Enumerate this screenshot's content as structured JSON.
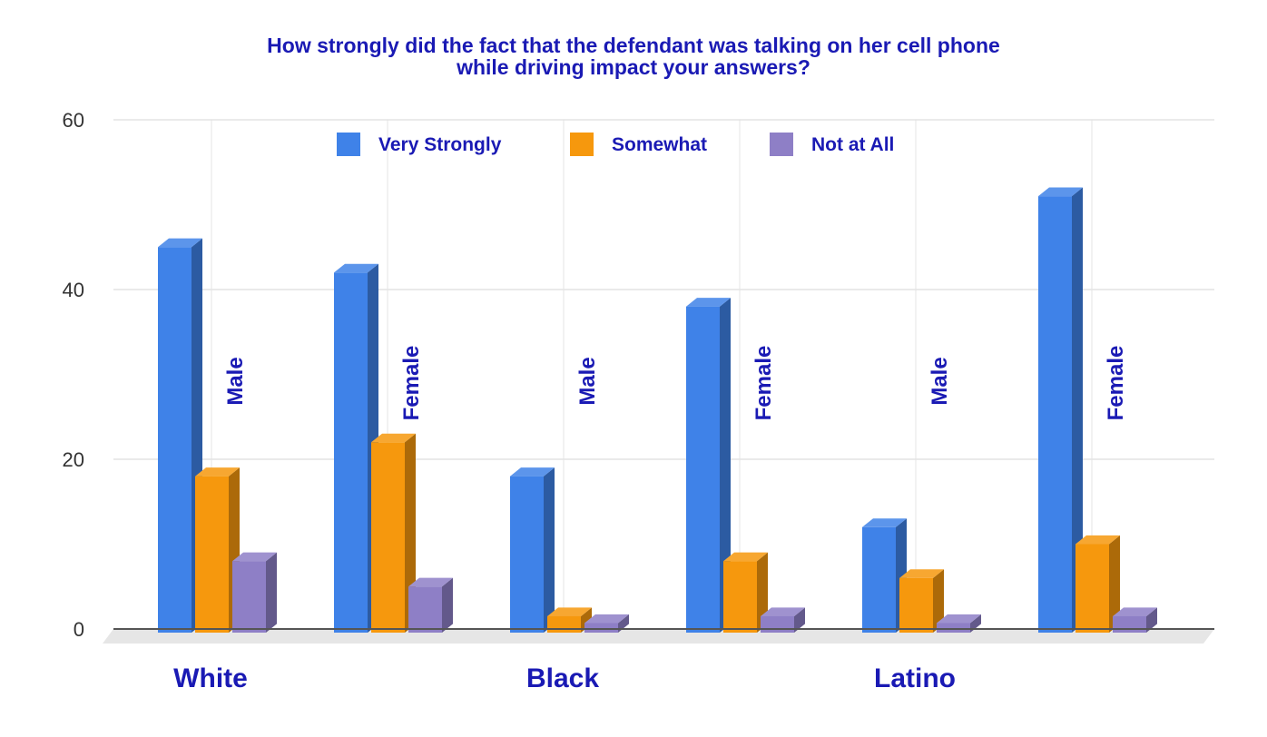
{
  "chart_data": {
    "type": "bar",
    "title_lines": [
      "How strongly did the fact that the defendant was talking on her cell phone",
      "while driving impact your answers?"
    ],
    "categories": [
      "Male",
      "Female",
      "Male",
      "Female",
      "Male",
      "Female"
    ],
    "groups": [
      {
        "label": "White",
        "categories": [
          0,
          1
        ]
      },
      {
        "label": "Black",
        "categories": [
          2,
          3
        ]
      },
      {
        "label": "Latino",
        "categories": [
          4,
          5
        ]
      }
    ],
    "series": [
      {
        "name": "Very Strongly",
        "color": "#3f82e8",
        "values": [
          45,
          42,
          18,
          38,
          12,
          51
        ]
      },
      {
        "name": "Somewhat",
        "color": "#f6980d",
        "values": [
          18,
          22,
          1.5,
          8,
          6,
          10
        ]
      },
      {
        "name": "Not at All",
        "color": "#8e7fc6",
        "values": [
          8,
          5,
          0.7,
          1.5,
          0.7,
          1.5
        ]
      }
    ],
    "yticks": [
      0,
      20,
      40,
      60
    ],
    "ylim": [
      0,
      60
    ],
    "legend_position": "top",
    "grid": true
  }
}
